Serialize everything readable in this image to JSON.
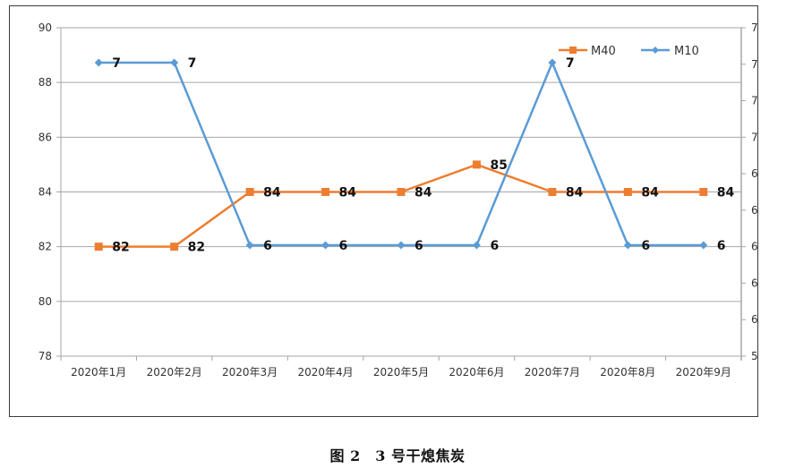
{
  "chart_data": {
    "type": "line",
    "title": "",
    "caption": "图 2　3 号干熄焦炭",
    "categories": [
      "2020年1月",
      "2020年2月",
      "2020年3月",
      "2020年4月",
      "2020年5月",
      "2020年6月",
      "2020年7月",
      "2020年8月",
      "2020年9月"
    ],
    "series": [
      {
        "name": "M40",
        "axis": "left",
        "color": "#ED7D31",
        "marker": "square",
        "values": [
          82,
          82,
          84,
          84,
          84,
          85,
          84,
          84,
          84
        ],
        "labels": [
          "82",
          "82",
          "84",
          "84",
          "84",
          "85",
          "84",
          "84",
          "84"
        ]
      },
      {
        "name": "M10",
        "axis": "right",
        "color": "#5B9BD5",
        "marker": "diamond",
        "values": [
          7,
          7,
          6,
          6,
          6,
          6,
          7,
          6,
          6
        ],
        "labels": [
          "7",
          "7",
          "6",
          "6",
          "6",
          "6",
          "7",
          "6",
          "6"
        ]
      }
    ],
    "left_axis": {
      "min": 78,
      "max": 90,
      "step": 2,
      "tick_labels": [
        "90",
        "88",
        "86",
        "84",
        "82",
        "80",
        "78"
      ]
    },
    "right_axis": {
      "tick_labels": [
        "7",
        "7",
        "7",
        "7",
        "6",
        "6",
        "6",
        "6",
        "6",
        "5"
      ]
    },
    "xlabel": "",
    "ylabel": "",
    "grid": true,
    "legend": {
      "position": "top-right",
      "entries": [
        "M40",
        "M10"
      ]
    }
  }
}
